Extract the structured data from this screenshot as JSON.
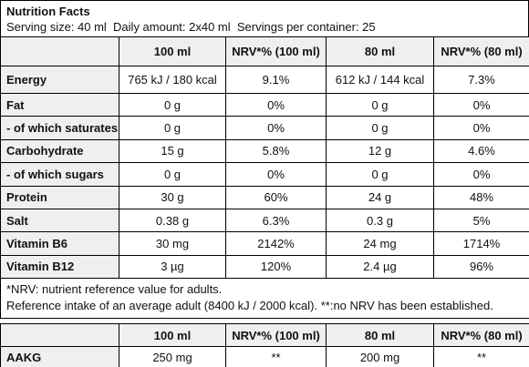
{
  "header": {
    "title": "Nutrition Facts",
    "serving": "Serving size: 40 ml  Daily amount: 2x40 ml  Servings per container: 25"
  },
  "table": {
    "columns": [
      "100 ml",
      "NRV*% (100 ml)",
      "80 ml",
      "NRV*% (80 ml)"
    ],
    "rows": [
      [
        "Energy",
        "765 kJ / 180 kcal",
        "9.1%",
        "612 kJ / 144 kcal",
        "7.3%"
      ],
      [
        "Fat",
        "0 g",
        "0%",
        "0 g",
        "0%"
      ],
      [
        "- of which saturates",
        "0 g",
        "0%",
        "0 g",
        "0%"
      ],
      [
        "Carbohydrate",
        "15 g",
        "5.8%",
        "12 g",
        "4.6%"
      ],
      [
        "- of which sugars",
        "0 g",
        "0%",
        "0 g",
        "0%"
      ],
      [
        "Protein",
        "30 g",
        "60%",
        "24 g",
        "48%"
      ],
      [
        "Salt",
        "0.38 g",
        "6.3%",
        "0.3 g",
        "5%"
      ],
      [
        "Vitamin B6",
        "30 mg",
        "2142%",
        "24 mg",
        "1714%"
      ],
      [
        "Vitamin B12",
        "3 µg",
        "120%",
        "2.4 µg",
        "96%"
      ]
    ]
  },
  "footnotes": [
    "*NRV: nutrient reference value for adults.",
    "Reference intake of an average adult (8400 kJ / 2000 kcal). **:no NRV has been established."
  ],
  "table2": {
    "columns": [
      "100 ml",
      "NRV*% (100 ml)",
      "80 ml",
      "NRV*% (80 ml)"
    ],
    "rows": [
      [
        "AAKG",
        "250 mg",
        "**",
        "200 mg",
        "**"
      ]
    ]
  }
}
